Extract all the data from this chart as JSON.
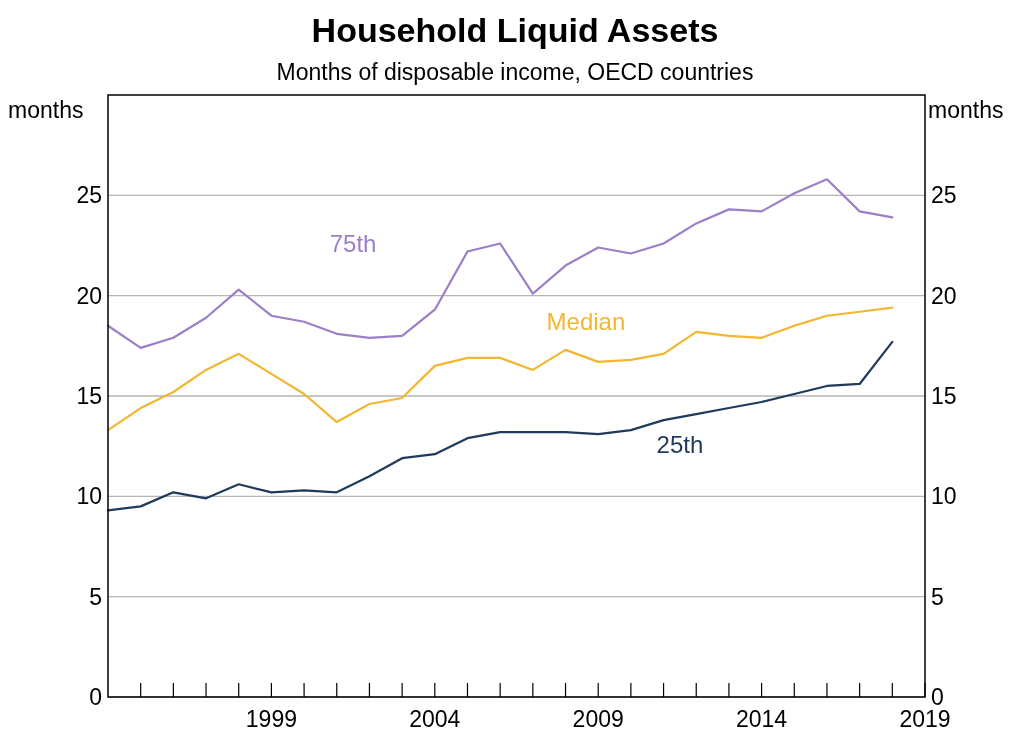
{
  "chart_data": {
    "type": "line",
    "title": "Household Liquid Assets",
    "subtitle": "Months of disposable income, OECD countries",
    "ylabel": "months",
    "y2label": "months",
    "x": [
      1994,
      1995,
      1996,
      1997,
      1998,
      1999,
      2000,
      2001,
      2002,
      2003,
      2004,
      2005,
      2006,
      2007,
      2008,
      2009,
      2010,
      2011,
      2012,
      2013,
      2014,
      2015,
      2016,
      2017,
      2018
    ],
    "series": [
      {
        "name": "75th",
        "color": "#9b7fc7",
        "values": [
          18.5,
          17.4,
          17.9,
          18.9,
          20.3,
          19.0,
          18.7,
          18.1,
          17.9,
          18.0,
          19.3,
          22.2,
          22.6,
          20.1,
          21.5,
          22.4,
          22.1,
          22.6,
          23.6,
          24.3,
          24.2,
          25.1,
          25.8,
          24.2,
          23.9
        ]
      },
      {
        "name": "Median",
        "color": "#f2b630",
        "values": [
          13.3,
          14.4,
          15.2,
          16.3,
          17.1,
          16.1,
          15.1,
          13.7,
          14.6,
          14.9,
          16.5,
          16.9,
          16.9,
          16.3,
          17.3,
          16.7,
          16.8,
          17.1,
          18.2,
          18.0,
          17.9,
          18.5,
          19.0,
          19.2,
          19.4
        ]
      },
      {
        "name": "25th",
        "color": "#1f3a5a",
        "values": [
          9.3,
          9.5,
          10.2,
          9.9,
          10.6,
          10.2,
          10.3,
          10.2,
          11.0,
          11.9,
          12.1,
          12.9,
          13.2,
          13.2,
          13.2,
          13.1,
          13.3,
          13.8,
          14.1,
          14.4,
          14.7,
          15.1,
          15.5,
          15.6,
          17.7
        ]
      }
    ],
    "xlim": [
      1994,
      2019
    ],
    "xticks": [
      {
        "value": 1995,
        "label": null
      },
      {
        "value": 1996,
        "label": null
      },
      {
        "value": 1997,
        "label": null
      },
      {
        "value": 1998,
        "label": null
      },
      1999,
      {
        "value": 2000,
        "label": null
      },
      {
        "value": 2001,
        "label": null
      },
      {
        "value": 2002,
        "label": null
      },
      {
        "value": 2003,
        "label": null
      },
      2004,
      {
        "value": 2005,
        "label": null
      },
      {
        "value": 2006,
        "label": null
      },
      {
        "value": 2007,
        "label": null
      },
      {
        "value": 2008,
        "label": null
      },
      2009,
      {
        "value": 2010,
        "label": null
      },
      {
        "value": 2011,
        "label": null
      },
      {
        "value": 2012,
        "label": null
      },
      {
        "value": 2013,
        "label": null
      },
      2014,
      {
        "value": 2015,
        "label": null
      },
      {
        "value": 2016,
        "label": null
      },
      {
        "value": 2017,
        "label": null
      },
      {
        "value": 2018,
        "label": null
      },
      2019
    ],
    "ylim": [
      0,
      30
    ],
    "yticks": [
      0,
      5,
      10,
      15,
      20,
      25
    ],
    "y2lim": [
      0,
      30
    ],
    "y2ticks": [
      0,
      5,
      10,
      15,
      20,
      25
    ],
    "grid": "y",
    "marker": "none",
    "line_style": "solid"
  }
}
